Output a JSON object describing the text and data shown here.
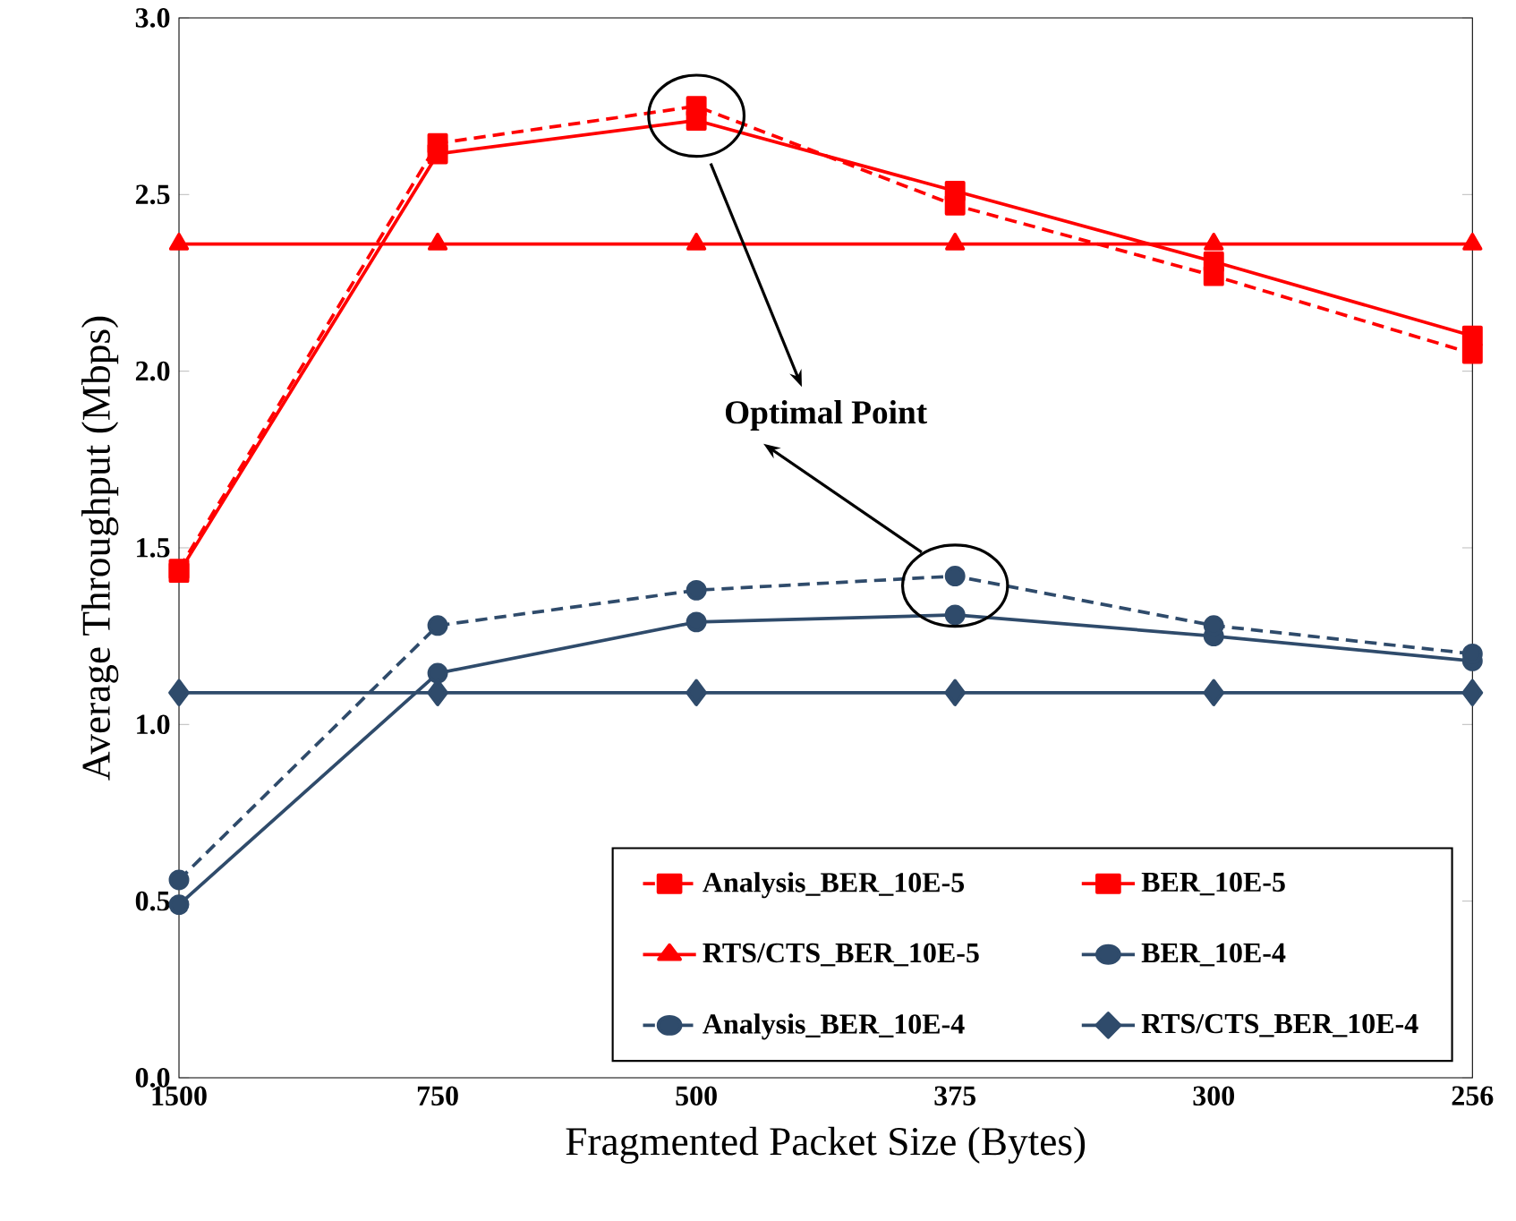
{
  "chart_data": {
    "type": "line",
    "xlabel": "Fragmented Packet  Size (Bytes)",
    "ylabel": "Average Throughput (Mbps)",
    "categories": [
      "1500",
      "750",
      "500",
      "375",
      "300",
      "256"
    ],
    "ylim": [
      0,
      3
    ],
    "yticks": [
      {
        "value": 0,
        "label": "0.0"
      },
      {
        "value": 0.5,
        "label": "0.5"
      },
      {
        "value": 1,
        "label": "1.0"
      },
      {
        "value": 1.5,
        "label": "1.5"
      },
      {
        "value": 2,
        "label": "2.0"
      },
      {
        "value": 2.5,
        "label": "2.5"
      },
      {
        "value": 3,
        "label": "3.0"
      }
    ],
    "legend": "bottom right",
    "grid": false,
    "annotations": [
      "Optimal Point"
    ],
    "series": [
      {
        "name": "Analysis_BER_10E-5",
        "color": "#ff0000",
        "line_style": "dashed",
        "marker": "square",
        "values": [
          1.44,
          2.645,
          2.75,
          2.47,
          2.27,
          2.05
        ]
      },
      {
        "name": "BER_10E-5",
        "color": "#ff0000",
        "line_style": "solid",
        "marker": "square",
        "values": [
          1.43,
          2.615,
          2.71,
          2.51,
          2.31,
          2.1
        ]
      },
      {
        "name": "RTS/CTS_BER_10E-5",
        "color": "#ff0000",
        "line_style": "solid",
        "marker": "triangle",
        "values": [
          2.36,
          2.36,
          2.36,
          2.36,
          2.36,
          2.36
        ]
      },
      {
        "name": "BER_10E-4",
        "color": "#2f4b6b",
        "line_style": "solid",
        "marker": "circle",
        "values": [
          0.49,
          1.145,
          1.29,
          1.31,
          1.25,
          1.18
        ]
      },
      {
        "name": "Analysis_BER_10E-4",
        "color": "#2f4b6b",
        "line_style": "dashed",
        "marker": "circle",
        "values": [
          0.56,
          1.28,
          1.38,
          1.42,
          1.28,
          1.2
        ]
      },
      {
        "name": "RTS/CTS_BER_10E-4",
        "color": "#2f4b6b",
        "line_style": "solid",
        "marker": "diamond",
        "values": [
          1.09,
          1.09,
          1.09,
          1.09,
          1.09,
          1.09
        ]
      }
    ]
  }
}
